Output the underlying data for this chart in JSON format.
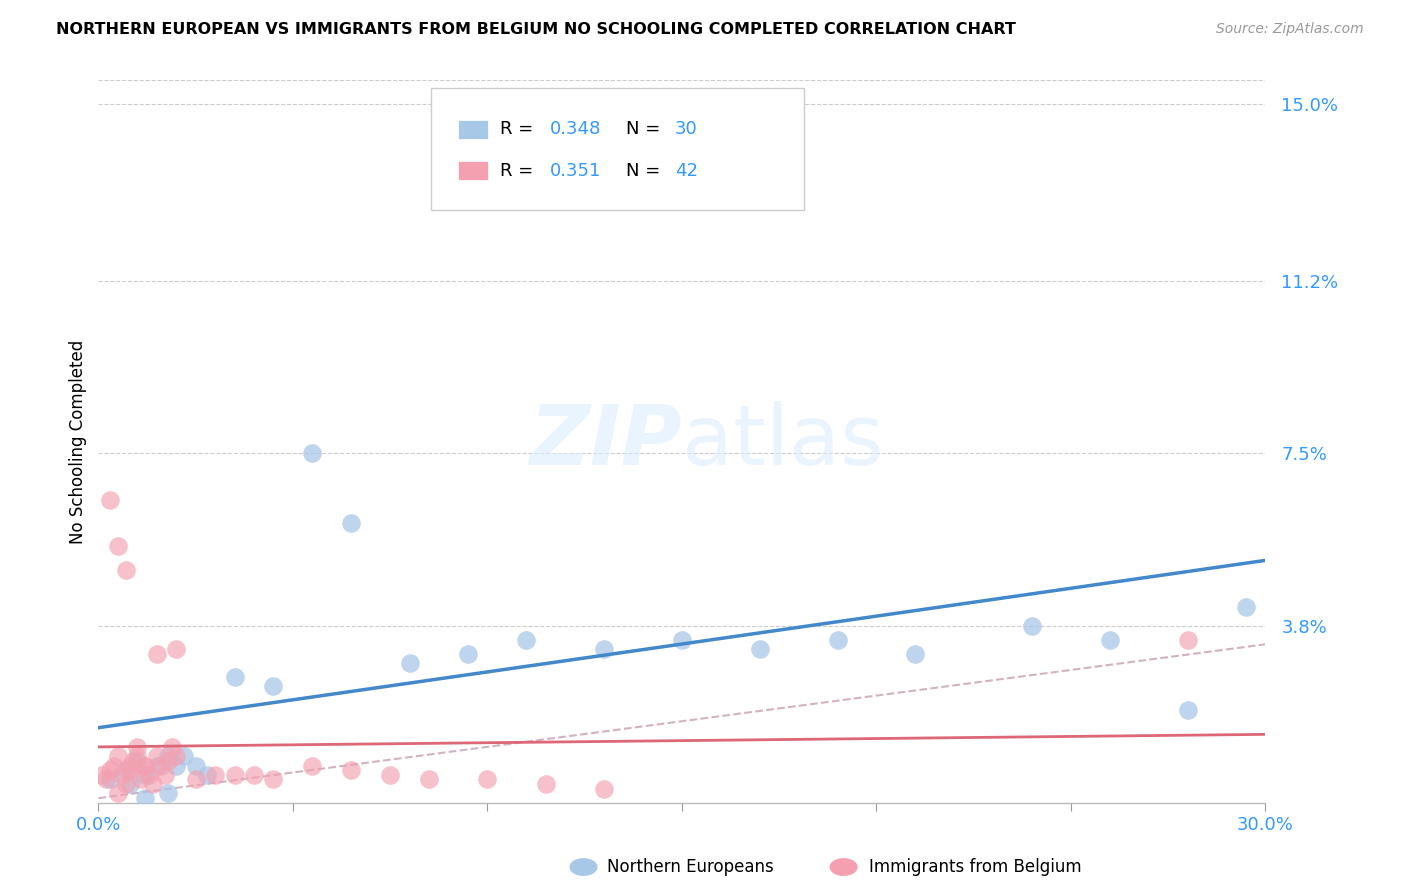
{
  "title": "NORTHERN EUROPEAN VS IMMIGRANTS FROM BELGIUM NO SCHOOLING COMPLETED CORRELATION CHART",
  "source": "Source: ZipAtlas.com",
  "ylabel": "No Schooling Completed",
  "xlim": [
    0.0,
    0.3
  ],
  "ylim": [
    0.0,
    0.155
  ],
  "yticks": [
    0.0,
    0.038,
    0.075,
    0.112,
    0.15
  ],
  "ytick_labels": [
    "",
    "3.8%",
    "7.5%",
    "11.2%",
    "15.0%"
  ],
  "blue_R": "0.348",
  "blue_N": "30",
  "pink_R": "0.351",
  "pink_N": "42",
  "blue_color": "#a8c8e8",
  "pink_color": "#f4a0b0",
  "blue_line_color": "#4488cc",
  "pink_line_color": "#dd6677",
  "pink_dash_color": "#ccaabb",
  "watermark_zip": "ZIP",
  "watermark_atlas": "atlas",
  "legend_label_blue": "Northern Europeans",
  "legend_label_pink": "Immigrants from Belgium",
  "blue_scatter_x": [
    0.003,
    0.007,
    0.01,
    0.012,
    0.015,
    0.018,
    0.02,
    0.022,
    0.025,
    0.028,
    0.035,
    0.045,
    0.055,
    0.065,
    0.08,
    0.095,
    0.11,
    0.13,
    0.15,
    0.17,
    0.19,
    0.21,
    0.24,
    0.26,
    0.28,
    0.295,
    0.13,
    0.008,
    0.012,
    0.018
  ],
  "blue_scatter_y": [
    0.005,
    0.007,
    0.009,
    0.006,
    0.008,
    0.01,
    0.008,
    0.01,
    0.008,
    0.006,
    0.027,
    0.025,
    0.075,
    0.06,
    0.03,
    0.032,
    0.035,
    0.033,
    0.035,
    0.033,
    0.035,
    0.032,
    0.038,
    0.035,
    0.02,
    0.042,
    0.14,
    0.004,
    0.001,
    0.002
  ],
  "pink_scatter_x": [
    0.001,
    0.002,
    0.003,
    0.004,
    0.005,
    0.006,
    0.007,
    0.008,
    0.009,
    0.01,
    0.011,
    0.012,
    0.013,
    0.014,
    0.015,
    0.016,
    0.017,
    0.018,
    0.019,
    0.02,
    0.003,
    0.005,
    0.007,
    0.008,
    0.01,
    0.012,
    0.015,
    0.02,
    0.025,
    0.03,
    0.035,
    0.04,
    0.045,
    0.055,
    0.065,
    0.075,
    0.085,
    0.1,
    0.115,
    0.13,
    0.005,
    0.28
  ],
  "pink_scatter_y": [
    0.006,
    0.005,
    0.007,
    0.008,
    0.01,
    0.006,
    0.004,
    0.007,
    0.009,
    0.012,
    0.005,
    0.008,
    0.006,
    0.004,
    0.01,
    0.008,
    0.006,
    0.009,
    0.012,
    0.01,
    0.065,
    0.055,
    0.05,
    0.008,
    0.01,
    0.008,
    0.032,
    0.033,
    0.005,
    0.006,
    0.006,
    0.006,
    0.005,
    0.008,
    0.007,
    0.006,
    0.005,
    0.005,
    0.004,
    0.003,
    0.002,
    0.035
  ]
}
